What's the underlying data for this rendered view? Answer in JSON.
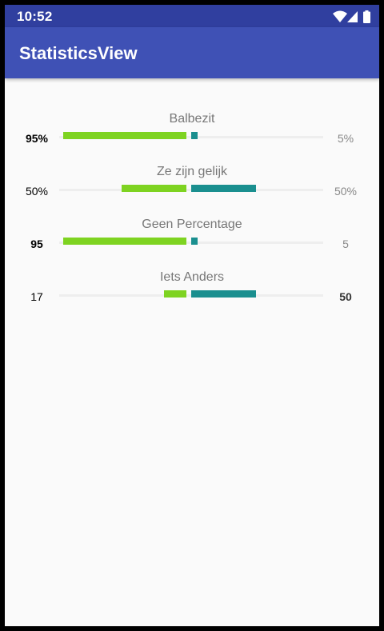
{
  "status_bar": {
    "time": "10:52",
    "icons": [
      "wifi-icon",
      "signal-icon",
      "battery-icon"
    ]
  },
  "app_bar": {
    "title": "StatisticsView",
    "color": "#3F51B5"
  },
  "colors": {
    "left_bar": "#7ED321",
    "right_bar": "#1A8F8F",
    "track": "#EEEEEE"
  },
  "stats": [
    {
      "title": "Balbezit",
      "left_label": "95%",
      "right_label": "5%",
      "left_value": 95,
      "right_value": 5,
      "left_bold": true,
      "right_bold": false
    },
    {
      "title": "Ze zijn gelijk",
      "left_label": "50%",
      "right_label": "50%",
      "left_value": 50,
      "right_value": 50,
      "left_bold": false,
      "right_bold": false
    },
    {
      "title": "Geen Percentage",
      "left_label": "95",
      "right_label": "5",
      "left_value": 95,
      "right_value": 5,
      "left_bold": true,
      "right_bold": false
    },
    {
      "title": "Iets Anders",
      "left_label": "17",
      "right_label": "50",
      "left_value": 17,
      "right_value": 50,
      "left_bold": false,
      "right_bold": true
    }
  ]
}
